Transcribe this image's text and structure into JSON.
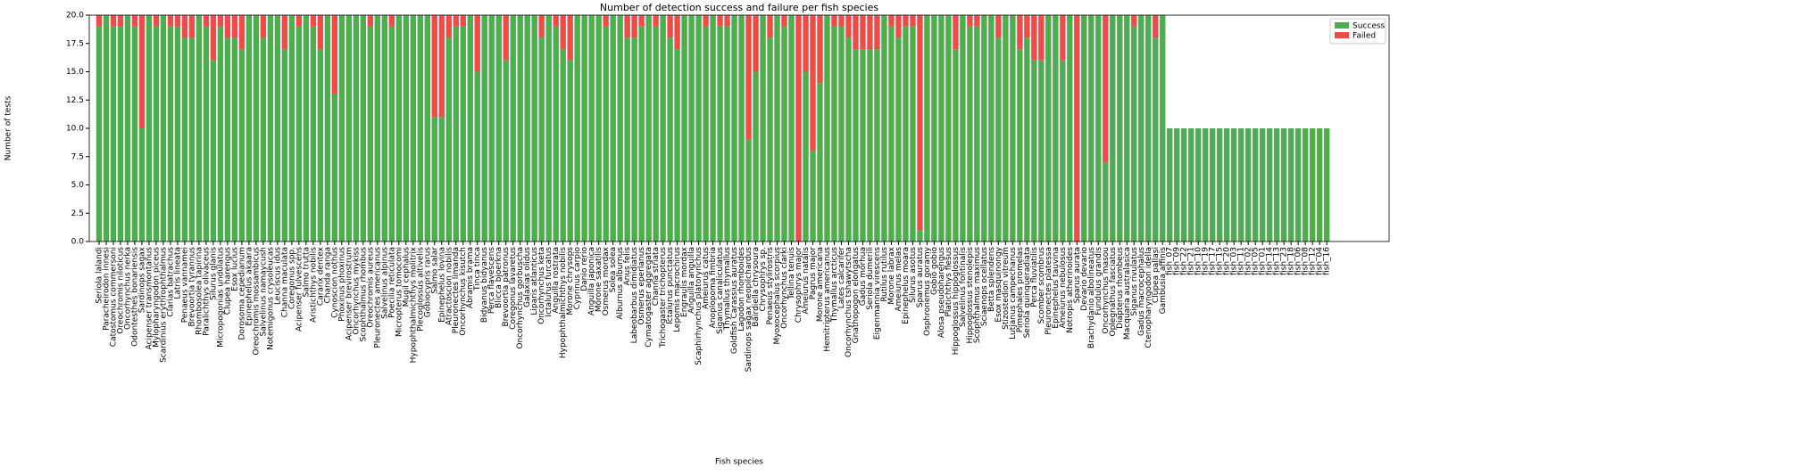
{
  "chart_data": {
    "type": "stacked_bar",
    "title": "Number of detection success and failure per fish species",
    "xlabel": "Fish species",
    "ylabel": "Number of tests",
    "categories": [
      "Seriola lalandi",
      "Paracheirodon innesi",
      "Catostomus commersoni",
      "Oreochromis niloticus",
      "Oncorhynchus nerka",
      "Odontesthes bonariensis",
      "Sardinops sagax",
      "Acipenser transmontanus",
      "Mylopharyngodon piceus",
      "Scardinius erythrophthalmus",
      "Clarias batrachus",
      "Latris lineata",
      "Penaeus vannamei",
      "Brevoortia tyrannus",
      "Rhombosolea tapirina",
      "Paralichthys olivaceus",
      "Silurus glanis",
      "Micropogonias undulatus",
      "Clupea harengus",
      "Esox lucius",
      "Dorosoma cepedianum",
      "Epinephelus akaara",
      "Oreochromis mossambicus",
      "Salvelinus namaycush",
      "Notemigonus crysoleucas",
      "Leuciscus idus",
      "Channa maculata",
      "Coregonus spp.",
      "Acipenser fulvescens",
      "Salmo trutta",
      "Aristichthys nobilis",
      "Caranx dentex",
      "Chanda ranga",
      "Cynoscion nothus",
      "Phoxinus phoxinus",
      "Acipenser brevirostrum",
      "Oncorhynchus mykiss",
      "Scophthalmus rhombus",
      "Oreochromis aureus",
      "Pleuronectes americanus",
      "Salvelinus alpinus",
      "Poecilia reticulata",
      "Micropterus tomocomi",
      "Mugil cephalus",
      "Hypophthalmichthys molitrix",
      "Plecoglossus altivelis",
      "Gobiocypris rarus",
      "Salmo salar",
      "Epinephelus lovina",
      "Atractoscion nobilis",
      "Pleuronectes limanda",
      "Oncorhynchus kisutch",
      "Abramis brama",
      "Tinca tinca",
      "Bidyanus bidyanus",
      "Perca flavescens",
      "Blicca bjoerkna",
      "Brevoortia patronus",
      "Coregonus lavaretus",
      "Oncorhynchus gorbuscha",
      "Galaxias olidus",
      "Liparis atlanticus",
      "Oncorhynchus keta",
      "Ictalurus furcatus",
      "Anguilla rostrata",
      "Hypophthalmichthys nobilis",
      "Morone chrysops",
      "Cyprinus carpio",
      "Danio rerio",
      "Anguilla japonica",
      "Morone saxatilis",
      "Osmerus mordax",
      "Solea solea",
      "Alburnus alburnus",
      "Anus felis",
      "Labeobarbus dimidiatus",
      "Osmerus eperlanus",
      "Cymatogaster aggregata",
      "Channa striata",
      "Trichogaster trichopterus",
      "Ictalurus punctatus",
      "Lepomis macrochirus",
      "Engraulis mordax",
      "Anguilla anguilla",
      "Scaphirhynchus platorynchus",
      "Ameiurus catus",
      "Anoplopoma fimbria",
      "Siganus canaliculatus",
      "Thymallus thymallus",
      "Goldfish Carassius auratus",
      "Lagodon rhomboides",
      "Sardinops sagax neopilchardus",
      "Bairdiella chrysoura",
      "Chrysophrys sp.",
      "Penaeus stylirostris",
      "Myoxocephalus scorpius",
      "Oncorhynchus clarki",
      "Tellina tenuis",
      "Chrysophrys major",
      "Ameiurus natalis",
      "Pagrus major",
      "Morone americana",
      "Hemitripterus americanus",
      "Thymallus arcticus",
      "Lates calcarifer",
      "Oncorhynchus tshawytscha",
      "Gnathopogon elongatus",
      "Gadus morhua",
      "Seriola dumerili",
      "Eigenmannia virescens",
      "Rutilus rutilus",
      "Morone labrax",
      "Ameiurus melas",
      "Epinephelus moara",
      "Silurus asotus",
      "Sparus auratus",
      "Osphronemus goramy",
      "Gobio gobio",
      "Alosa pseudoharengus",
      "Platichthys flesus",
      "Hippoglossus hippoglossus",
      "Salvelinus fontinalis",
      "Hippoglossus stenolepis",
      "Scophthalmus maximus",
      "Sciaenops ocellatus",
      "Betta splendens",
      "Esox masquinongy",
      "Stizostedion vitreum",
      "Lutjanus campechanus",
      "Pimephales promelas",
      "Seriola quinqueradiata",
      "Perca fluviatilis",
      "Scomber scombrus",
      "Pleuronectes platessa",
      "Epinephelus tauvina",
      "Ameiurus nebulosus",
      "Notropis atherinoides",
      "Sparus aurata",
      "Devario devario",
      "Brachydanio albolineatus",
      "Fundulus grandis",
      "Oncorhynchus masou",
      "Oplegnathus fasciatus",
      "Diapterus rhombeus",
      "Macquaria australasica",
      "Siganus rivulatus",
      "Gadus macrocephalus",
      "Ctenopharyngodon idella",
      "Clupea pallasi",
      "Gambusia affinis",
      "fish_07",
      "fish_09",
      "fish_22",
      "fish_21",
      "fish_10",
      "fish_19",
      "fish_17",
      "fish_15",
      "fish_20",
      "fish_03",
      "fish_11",
      "fish_02",
      "fish_05",
      "fish_01",
      "fish_14",
      "fish_13",
      "fish_23",
      "fish_18",
      "fish_06",
      "fish_08",
      "fish_12",
      "fish_04",
      "fish_16"
    ],
    "series": [
      {
        "name": "Success",
        "color": "#4cae4c",
        "values": [
          19,
          20,
          19,
          19,
          20,
          19,
          10,
          20,
          19,
          20,
          19,
          19,
          18,
          18,
          20,
          19,
          16,
          19,
          18,
          18,
          17,
          20,
          20,
          18,
          20,
          20,
          17,
          20,
          19,
          20,
          19,
          17,
          20,
          13,
          20,
          20,
          20,
          20,
          19,
          20,
          20,
          19,
          20,
          20,
          20,
          20,
          20,
          11,
          11,
          18,
          19,
          19,
          20,
          15,
          20,
          20,
          20,
          16,
          20,
          20,
          20,
          20,
          18,
          20,
          19,
          17,
          16,
          20,
          20,
          20,
          20,
          19,
          20,
          20,
          18,
          18,
          19,
          20,
          19,
          20,
          18,
          17,
          20,
          20,
          20,
          19,
          20,
          19,
          19,
          20,
          20,
          9,
          15,
          20,
          18,
          20,
          19,
          20,
          0,
          15,
          8,
          14,
          20,
          19,
          19,
          18,
          17,
          17,
          17,
          17,
          20,
          19,
          18,
          19,
          19,
          1,
          20,
          20,
          20,
          20,
          17,
          20,
          19,
          19,
          20,
          20,
          18,
          20,
          20,
          17,
          18,
          16,
          16,
          20,
          20,
          16,
          20,
          0,
          20,
          20,
          20,
          7,
          20,
          20,
          20,
          19,
          20,
          20,
          18,
          20,
          10,
          10,
          10,
          10,
          10,
          10,
          10,
          10,
          10,
          10,
          10,
          10,
          10,
          10,
          10,
          10,
          10,
          10,
          10,
          10,
          10,
          10,
          10
        ]
      },
      {
        "name": "Failed",
        "color": "#f04a4a",
        "values": [
          1,
          0,
          1,
          1,
          0,
          1,
          10,
          0,
          1,
          0,
          1,
          1,
          2,
          2,
          0,
          1,
          4,
          1,
          2,
          2,
          3,
          0,
          0,
          2,
          0,
          0,
          3,
          0,
          1,
          0,
          1,
          3,
          0,
          7,
          0,
          0,
          0,
          0,
          1,
          0,
          0,
          1,
          0,
          0,
          0,
          0,
          0,
          9,
          9,
          2,
          1,
          1,
          0,
          5,
          0,
          0,
          0,
          4,
          0,
          0,
          0,
          0,
          2,
          0,
          1,
          3,
          4,
          0,
          0,
          0,
          0,
          1,
          0,
          0,
          2,
          2,
          1,
          0,
          1,
          0,
          2,
          3,
          0,
          0,
          0,
          1,
          0,
          1,
          1,
          0,
          0,
          11,
          5,
          0,
          2,
          0,
          1,
          0,
          20,
          5,
          12,
          6,
          0,
          1,
          1,
          2,
          3,
          3,
          3,
          3,
          0,
          1,
          2,
          1,
          1,
          19,
          0,
          0,
          0,
          0,
          3,
          0,
          1,
          1,
          0,
          0,
          2,
          0,
          0,
          3,
          2,
          4,
          4,
          0,
          0,
          4,
          0,
          20,
          0,
          0,
          0,
          13,
          0,
          0,
          0,
          1,
          0,
          0,
          2,
          0,
          0,
          0,
          0,
          0,
          0,
          0,
          0,
          0,
          0,
          0,
          0,
          0,
          0,
          0,
          0,
          0,
          0,
          0,
          0,
          0,
          0,
          0,
          0
        ]
      }
    ],
    "ylim": [
      0,
      20
    ],
    "yticks": [
      {
        "value": 0,
        "label": "0.0"
      },
      {
        "value": 2.5,
        "label": "2.5"
      },
      {
        "value": 5,
        "label": "5.0"
      },
      {
        "value": 7.5,
        "label": "7.5"
      },
      {
        "value": 10,
        "label": "10.0"
      },
      {
        "value": 12.5,
        "label": "12.5"
      },
      {
        "value": 15,
        "label": "15.0"
      },
      {
        "value": 17.5,
        "label": "17.5"
      },
      {
        "value": 20,
        "label": "20.0"
      }
    ],
    "legend": "upper right"
  }
}
